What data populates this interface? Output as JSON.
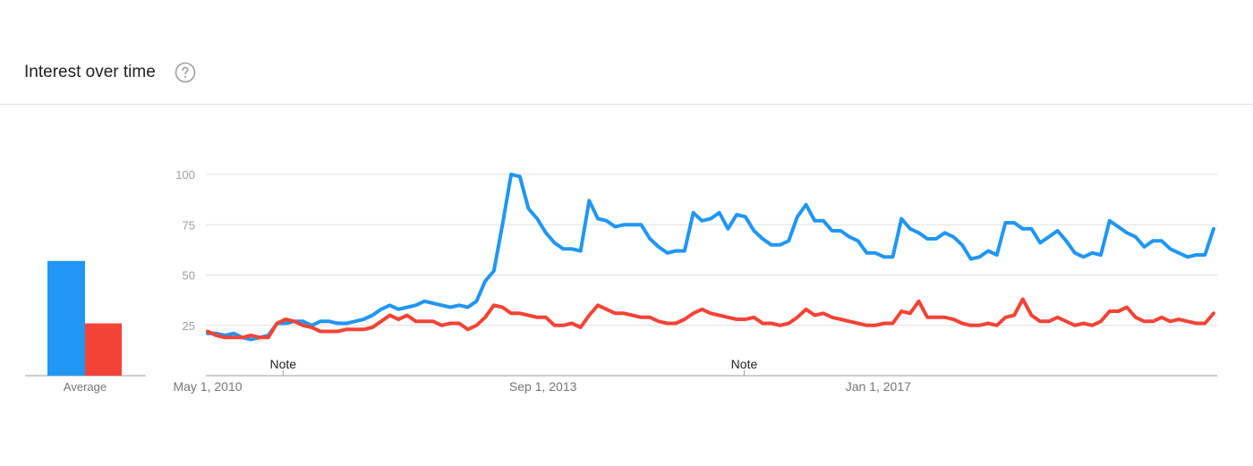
{
  "header": {
    "title": "Interest over time",
    "help_icon": "help-circle-icon"
  },
  "colors": {
    "series_1": "#2196F3",
    "series_2": "#F44336",
    "grid": "#e0e0e0",
    "axis": "#9e9e9e"
  },
  "chart_data": [
    {
      "type": "bar",
      "categories": [
        "Average"
      ],
      "series": [
        {
          "values": [
            57
          ]
        },
        {
          "values": [
            26
          ]
        }
      ],
      "ylim": [
        0,
        100
      ]
    },
    {
      "type": "line",
      "x_tick_labels": [
        "May 1, 2010",
        "Sep 1, 2013",
        "Jan 1, 2017"
      ],
      "y_ticks": [
        25,
        50,
        75,
        100
      ],
      "ylim": [
        0,
        100
      ],
      "grid": true,
      "annotations": [
        {
          "label": "Note",
          "date": "2011-02"
        },
        {
          "label": "Note",
          "date": "2015-09"
        }
      ],
      "x_start": "2010-05",
      "x_end": "2020-05",
      "series": [
        {
          "values": [
            21,
            21,
            20,
            21,
            19,
            18,
            19,
            20,
            26,
            26,
            27,
            27,
            25,
            27,
            27,
            26,
            26,
            27,
            28,
            30,
            33,
            35,
            33,
            34,
            35,
            37,
            36,
            35,
            34,
            35,
            34,
            37,
            47,
            52,
            75,
            100,
            99,
            83,
            78,
            71,
            66,
            63,
            63,
            62,
            87,
            78,
            77,
            74,
            75,
            75,
            75,
            68,
            64,
            61,
            62,
            62,
            81,
            77,
            78,
            81,
            73,
            80,
            79,
            72,
            68,
            65,
            65,
            67,
            79,
            85,
            77,
            77,
            72,
            72,
            69,
            67,
            61,
            61,
            59,
            59,
            78,
            73,
            71,
            68,
            68,
            71,
            69,
            65,
            58,
            59,
            62,
            60,
            76,
            76,
            73,
            73,
            66,
            69,
            72,
            67,
            61,
            59,
            61,
            60,
            77,
            74,
            71,
            69,
            64,
            67,
            67,
            63,
            61,
            59,
            60,
            60,
            73
          ]
        },
        {
          "values": [
            22,
            20,
            19,
            19,
            19,
            20,
            19,
            19,
            26,
            28,
            27,
            25,
            24,
            22,
            22,
            22,
            23,
            23,
            23,
            24,
            27,
            30,
            28,
            30,
            27,
            27,
            27,
            25,
            26,
            26,
            23,
            25,
            29,
            35,
            34,
            31,
            31,
            30,
            29,
            29,
            25,
            25,
            26,
            24,
            30,
            35,
            33,
            31,
            31,
            30,
            29,
            29,
            27,
            26,
            26,
            28,
            31,
            33,
            31,
            30,
            29,
            28,
            28,
            29,
            26,
            26,
            25,
            26,
            29,
            33,
            30,
            31,
            29,
            28,
            27,
            26,
            25,
            25,
            26,
            26,
            32,
            31,
            37,
            29,
            29,
            29,
            28,
            26,
            25,
            25,
            26,
            25,
            29,
            30,
            38,
            30,
            27,
            27,
            29,
            27,
            25,
            26,
            25,
            27,
            32,
            32,
            34,
            29,
            27,
            27,
            29,
            27,
            28,
            27,
            26,
            26,
            31
          ]
        }
      ]
    }
  ]
}
